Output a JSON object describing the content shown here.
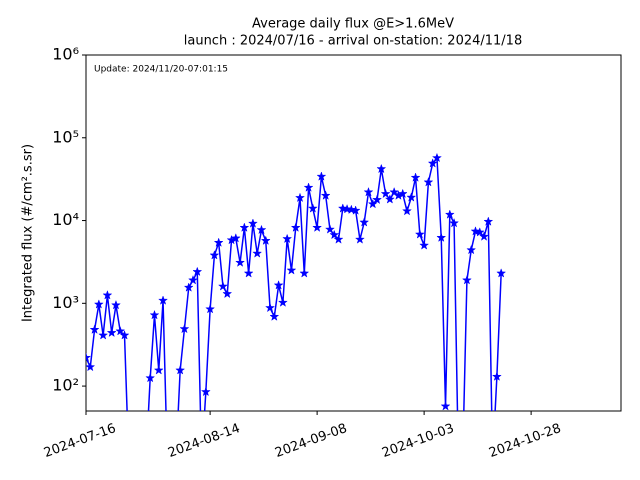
{
  "chart_data": {
    "type": "line",
    "title": "Average daily flux @E>1.6MeV",
    "subtitle": "launch : 2024/07/16 - arrival on-station: 2024/11/18",
    "annotation": "Update: 2024/11/20-07:01:15",
    "y_label": "Integrated flux (#/cm².s.sr)",
    "log_scale_y": true,
    "xlim": [
      "2024-07-16",
      "2024-11-18"
    ],
    "xticks": [
      "2024-07-16",
      "2024-08-14",
      "2024-09-08",
      "2024-10-03",
      "2024-10-28"
    ],
    "ylim": [
      50,
      1000000
    ],
    "yticks": [
      {
        "value": 100,
        "label": "10²"
      },
      {
        "value": 1000,
        "label": "10³"
      },
      {
        "value": 10000,
        "label": "10⁴"
      },
      {
        "value": 100000,
        "label": "10⁵"
      },
      {
        "value": 1000000,
        "label": "10⁶"
      }
    ],
    "x": [
      "2024-07-16",
      "2024-07-17",
      "2024-07-18",
      "2024-07-19",
      "2024-07-20",
      "2024-07-21",
      "2024-07-22",
      "2024-07-23",
      "2024-07-24",
      "2024-07-25",
      "2024-07-26",
      "2024-07-27",
      "2024-07-28",
      "2024-07-29",
      "2024-07-30",
      "2024-07-31",
      "2024-08-01",
      "2024-08-02",
      "2024-08-03",
      "2024-08-04",
      "2024-08-05",
      "2024-08-06",
      "2024-08-07",
      "2024-08-08",
      "2024-08-09",
      "2024-08-10",
      "2024-08-11",
      "2024-08-12",
      "2024-08-13",
      "2024-08-14",
      "2024-08-15",
      "2024-08-16",
      "2024-08-17",
      "2024-08-18",
      "2024-08-19",
      "2024-08-20",
      "2024-08-21",
      "2024-08-22",
      "2024-08-23",
      "2024-08-24",
      "2024-08-25",
      "2024-08-26",
      "2024-08-27",
      "2024-08-28",
      "2024-08-29",
      "2024-08-30",
      "2024-08-31",
      "2024-09-01",
      "2024-09-02",
      "2024-09-03",
      "2024-09-04",
      "2024-09-05",
      "2024-09-06",
      "2024-09-07",
      "2024-09-08",
      "2024-09-09",
      "2024-09-10",
      "2024-09-11",
      "2024-09-12",
      "2024-09-13",
      "2024-09-14",
      "2024-09-15",
      "2024-09-16",
      "2024-09-17",
      "2024-09-18",
      "2024-09-19",
      "2024-09-20",
      "2024-09-21",
      "2024-09-22",
      "2024-09-23",
      "2024-09-24",
      "2024-09-25",
      "2024-09-26",
      "2024-09-27",
      "2024-09-28",
      "2024-09-29",
      "2024-09-30",
      "2024-10-01",
      "2024-10-02",
      "2024-10-03",
      "2024-10-04",
      "2024-10-05",
      "2024-10-06",
      "2024-10-07",
      "2024-10-08",
      "2024-10-09",
      "2024-10-10",
      "2024-10-11",
      "2024-10-12",
      "2024-10-13",
      "2024-10-14",
      "2024-10-15",
      "2024-10-16",
      "2024-10-17",
      "2024-10-18",
      "2024-10-19",
      "2024-10-20",
      "2024-10-21"
    ],
    "series": [
      {
        "color": "#0000ff",
        "values": [
          220,
          170,
          480,
          970,
          410,
          1250,
          440,
          950,
          460,
          410,
          0,
          0,
          0,
          0,
          0,
          125,
          720,
          155,
          1080,
          0,
          0,
          0,
          155,
          490,
          1550,
          1900,
          2400,
          0,
          85,
          850,
          3800,
          5400,
          1600,
          1300,
          5800,
          6100,
          3100,
          8200,
          2300,
          9200,
          4000,
          7700,
          5700,
          880,
          690,
          1650,
          1020,
          6000,
          2500,
          8200,
          18800,
          2300,
          25000,
          14000,
          8200,
          34000,
          20000,
          7800,
          6700,
          5900,
          14000,
          13700,
          13500,
          13200,
          5900,
          9500,
          22000,
          15800,
          17800,
          42000,
          21000,
          18000,
          22000,
          20000,
          21000,
          13000,
          19000,
          33000,
          6800,
          5000,
          29000,
          49000,
          57000,
          6200,
          57,
          11800,
          9300,
          0,
          0,
          1900,
          4400,
          7400,
          7200,
          6400,
          9700,
          0,
          130,
          2300
        ]
      }
    ]
  }
}
